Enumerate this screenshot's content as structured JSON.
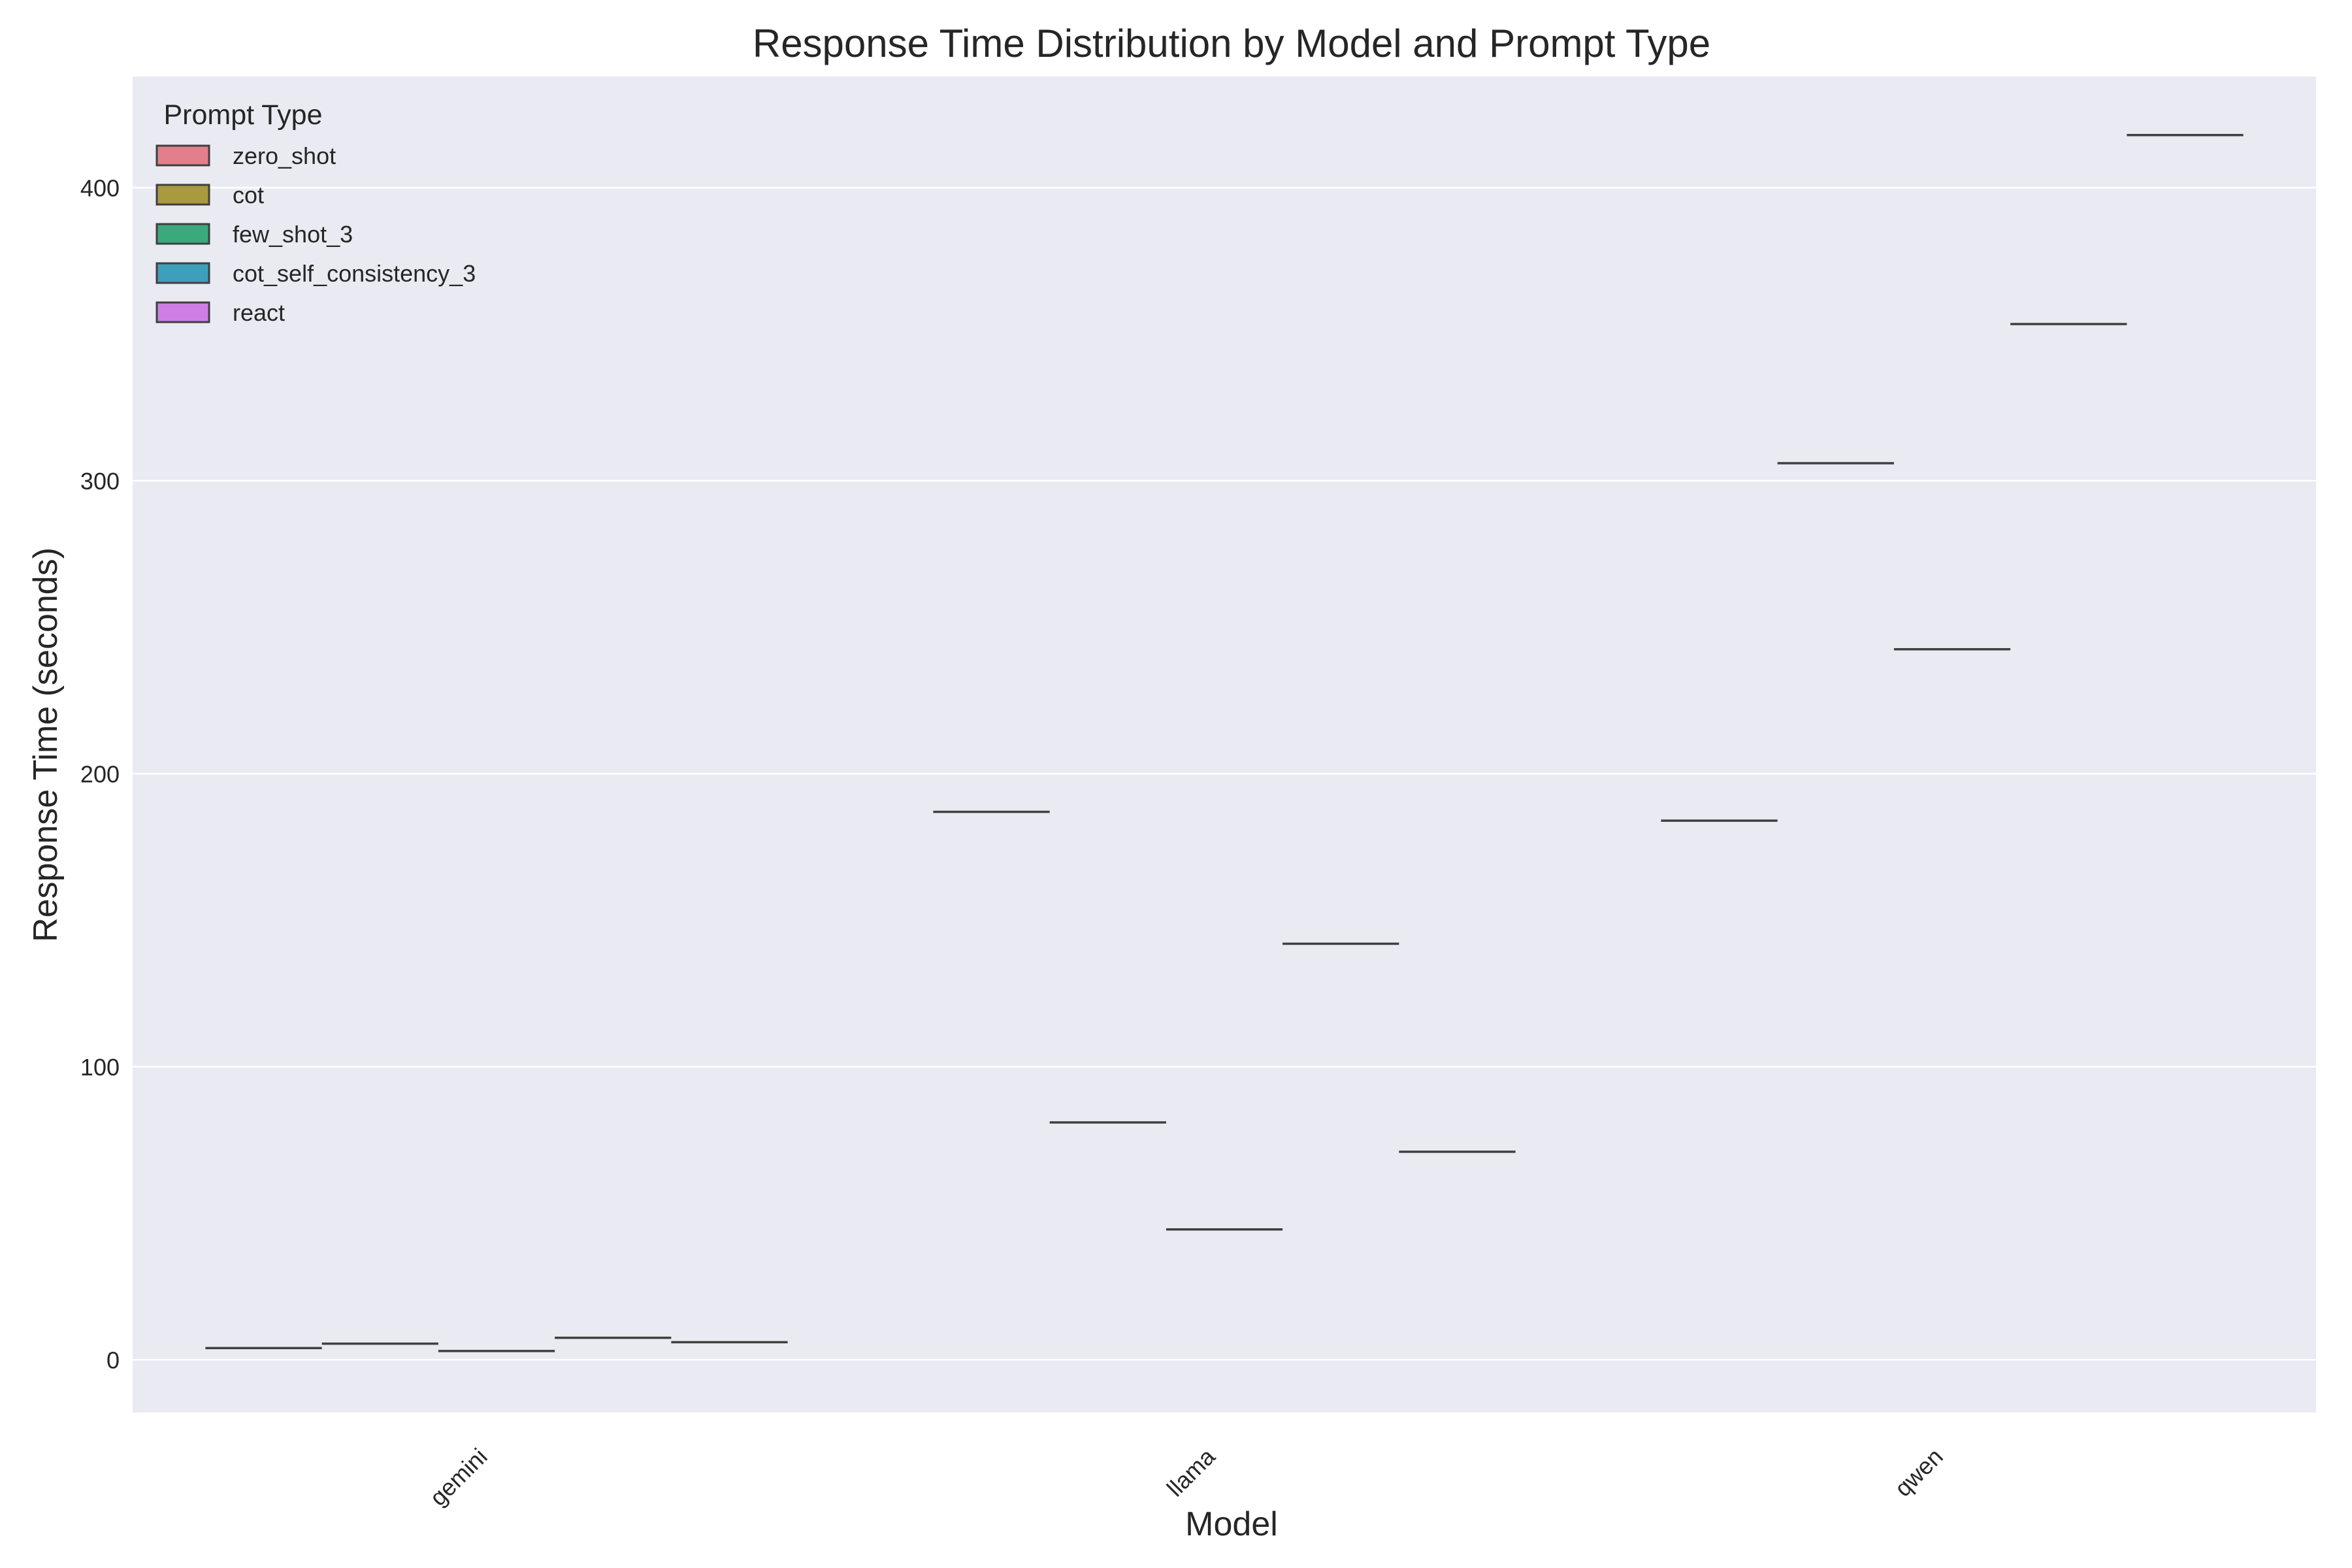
{
  "chart_data": {
    "type": "box",
    "title": "Response Time Distribution by Model and Prompt Type",
    "xlabel": "Model",
    "ylabel": "Response Time (seconds)",
    "categories": [
      "gemini",
      "llama",
      "qwen"
    ],
    "ylim": [
      -18,
      438
    ],
    "yticks": [
      0,
      100,
      200,
      300,
      400
    ],
    "grid": true,
    "legend": {
      "title": "Prompt Type",
      "placement": "top-left"
    },
    "series": [
      {
        "name": "zero_shot",
        "color": "#e17f8d",
        "values": [
          4,
          187,
          184
        ]
      },
      {
        "name": "cot",
        "color": "#a89a3d",
        "values": [
          5.5,
          81,
          306
        ]
      },
      {
        "name": "few_shot_3",
        "color": "#3aa97c",
        "values": [
          3,
          44.5,
          242.5
        ]
      },
      {
        "name": "cot_self_consistency_3",
        "color": "#3e9fbd",
        "values": [
          7.5,
          142,
          353.5
        ]
      },
      {
        "name": "react",
        "color": "#cf7ee6",
        "values": [
          6,
          71,
          418
        ]
      }
    ]
  }
}
